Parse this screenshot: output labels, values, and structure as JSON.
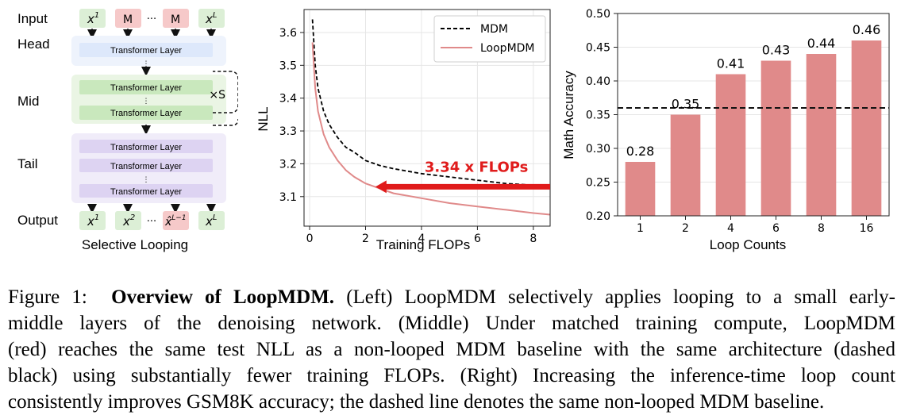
{
  "diagram": {
    "row_labels": {
      "input": "Input",
      "head": "Head",
      "mid": "Mid",
      "tail": "Tail",
      "output": "Output"
    },
    "input_tokens": [
      "x",
      "M",
      "···",
      "M",
      "x"
    ],
    "input_sups": [
      "1",
      "",
      "",
      "",
      "L"
    ],
    "output_tokens": [
      "x",
      "x",
      "···",
      "x̂",
      "x"
    ],
    "output_sups": [
      "1",
      "2",
      "",
      "L−1",
      "L"
    ],
    "layer_label": "Transformer Layer",
    "ellipsis": "⋮",
    "loop_label": "×S",
    "caption": "Selective Looping",
    "colors": {
      "head": "#dde8fb",
      "mid": "#d8efd0",
      "tail": "#e6dff5",
      "masked": "#f6c9c9",
      "token": "#dcefd6"
    }
  },
  "chart_data": [
    {
      "type": "line",
      "xlabel": "Training FLOPs",
      "ylabel": "NLL",
      "xlim": [
        -0.2,
        8.6
      ],
      "ylim": [
        3.01,
        3.67
      ],
      "x_ticks": [
        "0",
        "2",
        "4",
        "6",
        "8"
      ],
      "y_ticks": [
        "3.1",
        "3.2",
        "3.3",
        "3.4",
        "3.5",
        "3.6"
      ],
      "grid": true,
      "legend": "top-right",
      "series": [
        {
          "name": "MDM",
          "style": "dashed",
          "color": "#000000",
          "x": [
            0.1,
            0.2,
            0.3,
            0.5,
            0.7,
            1.0,
            1.3,
            1.6,
            2.0,
            2.5,
            3.0,
            4.0,
            5.0,
            6.0,
            7.0,
            8.0,
            8.6
          ],
          "y": [
            3.64,
            3.5,
            3.43,
            3.36,
            3.32,
            3.28,
            3.25,
            3.235,
            3.21,
            3.195,
            3.185,
            3.17,
            3.16,
            3.15,
            3.14,
            3.135,
            3.13
          ]
        },
        {
          "name": "LoopMDM",
          "style": "solid",
          "color": "#e08a8a",
          "x": [
            0.1,
            0.2,
            0.3,
            0.5,
            0.7,
            1.0,
            1.3,
            1.6,
            2.0,
            2.5,
            3.0,
            4.0,
            5.0,
            6.0,
            7.0,
            8.0,
            8.6
          ],
          "y": [
            3.57,
            3.43,
            3.36,
            3.29,
            3.25,
            3.21,
            3.18,
            3.16,
            3.14,
            3.125,
            3.11,
            3.095,
            3.08,
            3.07,
            3.06,
            3.05,
            3.045
          ]
        }
      ],
      "annotation": {
        "text": "3.34 x FLOPs",
        "color": "#e01b1b",
        "arrow_from_x": 8.6,
        "arrow_to_x": 2.35,
        "arrow_y": 3.13
      }
    },
    {
      "type": "bar",
      "categories": [
        "1",
        "2",
        "4",
        "6",
        "8",
        "16"
      ],
      "values": [
        0.28,
        0.35,
        0.41,
        0.43,
        0.44,
        0.46
      ],
      "data_labels": [
        "0.28",
        "0.35",
        "0.41",
        "0.43",
        "0.44",
        "0.46"
      ],
      "xlabel": "Loop Counts",
      "ylabel": "Math Accuracy",
      "ylim": [
        0.2,
        0.5
      ],
      "y_ticks": [
        "0.20",
        "0.25",
        "0.30",
        "0.35",
        "0.40",
        "0.45",
        "0.50"
      ],
      "baseline": 0.36,
      "bar_color": "#e08a8a",
      "grid": true
    }
  ],
  "figure_caption": {
    "label": "Figure 1:",
    "title": "Overview of LoopMDM.",
    "lines": [
      " (Left) LoopMDM selectively applies looping to a small early-",
      "middle layers of the denoising network. (Middle) Under matched training compute, LoopMDM",
      "(red) reaches the same test NLL as a non-looped MDM baseline with the same architecture (dashed",
      "black) using substantially fewer training FLOPs. (Right) Increasing the inference-time loop count",
      "consistently improves GSM8K accuracy; the dashed line denotes the same non-looped MDM baseline."
    ]
  }
}
